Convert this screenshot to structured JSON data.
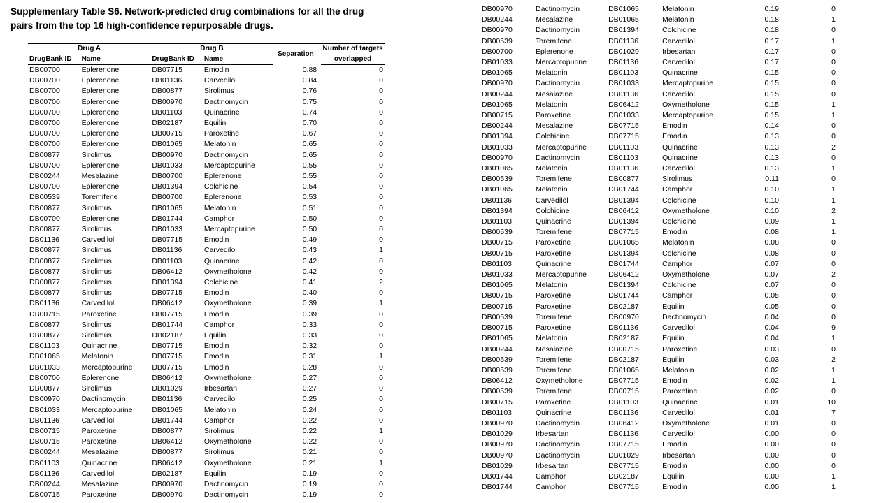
{
  "title_line1": "Supplementary Table S6. Network-predicted drug combinations for all the drug",
  "title_line2": "pairs from the top 16 high-confidence repurposable drugs.",
  "headers": {
    "drug_a": "Drug A",
    "drug_b": "Drug B",
    "separation": "Separation",
    "overlap_line1": "Number of targets",
    "overlap_line2": "overlapped",
    "id_a": "DrugBank ID",
    "name_a": "Name",
    "id_b": "DrugBank ID",
    "name_b": "Name"
  },
  "left_rows": [
    [
      "DB00700",
      "Eplerenone",
      "DB07715",
      "Emodin",
      "0.88",
      "0"
    ],
    [
      "DB00700",
      "Eplerenone",
      "DB01136",
      "Carvedilol",
      "0.84",
      "0"
    ],
    [
      "DB00700",
      "Eplerenone",
      "DB00877",
      "Sirolimus",
      "0.76",
      "0"
    ],
    [
      "DB00700",
      "Eplerenone",
      "DB00970",
      "Dactinomycin",
      "0.75",
      "0"
    ],
    [
      "DB00700",
      "Eplerenone",
      "DB01103",
      "Quinacrine",
      "0.74",
      "0"
    ],
    [
      "DB00700",
      "Eplerenone",
      "DB02187",
      "Equilin",
      "0.70",
      "0"
    ],
    [
      "DB00700",
      "Eplerenone",
      "DB00715",
      "Paroxetine",
      "0.67",
      "0"
    ],
    [
      "DB00700",
      "Eplerenone",
      "DB01065",
      "Melatonin",
      "0.65",
      "0"
    ],
    [
      "DB00877",
      "Sirolimus",
      "DB00970",
      "Dactinomycin",
      "0.65",
      "0"
    ],
    [
      "DB00700",
      "Eplerenone",
      "DB01033",
      "Mercaptopurine",
      "0.55",
      "0"
    ],
    [
      "DB00244",
      "Mesalazine",
      "DB00700",
      "Eplerenone",
      "0.55",
      "0"
    ],
    [
      "DB00700",
      "Eplerenone",
      "DB01394",
      "Colchicine",
      "0.54",
      "0"
    ],
    [
      "DB00539",
      "Toremifene",
      "DB00700",
      "Eplerenone",
      "0.53",
      "0"
    ],
    [
      "DB00877",
      "Sirolimus",
      "DB01065",
      "Melatonin",
      "0.51",
      "0"
    ],
    [
      "DB00700",
      "Eplerenone",
      "DB01744",
      "Camphor",
      "0.50",
      "0"
    ],
    [
      "DB00877",
      "Sirolimus",
      "DB01033",
      "Mercaptopurine",
      "0.50",
      "0"
    ],
    [
      "DB01136",
      "Carvedilol",
      "DB07715",
      "Emodin",
      "0.49",
      "0"
    ],
    [
      "DB00877",
      "Sirolimus",
      "DB01136",
      "Carvedilol",
      "0.43",
      "1"
    ],
    [
      "DB00877",
      "Sirolimus",
      "DB01103",
      "Quinacrine",
      "0.42",
      "0"
    ],
    [
      "DB00877",
      "Sirolimus",
      "DB06412",
      "Oxymetholone",
      "0.42",
      "0"
    ],
    [
      "DB00877",
      "Sirolimus",
      "DB01394",
      "Colchicine",
      "0.41",
      "2"
    ],
    [
      "DB00877",
      "Sirolimus",
      "DB07715",
      "Emodin",
      "0.40",
      "0"
    ],
    [
      "DB01136",
      "Carvedilol",
      "DB06412",
      "Oxymetholone",
      "0.39",
      "1"
    ],
    [
      "DB00715",
      "Paroxetine",
      "DB07715",
      "Emodin",
      "0.39",
      "0"
    ],
    [
      "DB00877",
      "Sirolimus",
      "DB01744",
      "Camphor",
      "0.33",
      "0"
    ],
    [
      "DB00877",
      "Sirolimus",
      "DB02187",
      "Equilin",
      "0.33",
      "0"
    ],
    [
      "DB01103",
      "Quinacrine",
      "DB07715",
      "Emodin",
      "0.32",
      "0"
    ],
    [
      "DB01065",
      "Melatonin",
      "DB07715",
      "Emodin",
      "0.31",
      "1"
    ],
    [
      "DB01033",
      "Mercaptopurine",
      "DB07715",
      "Emodin",
      "0.28",
      "0"
    ],
    [
      "DB00700",
      "Eplerenone",
      "DB06412",
      "Oxymetholone",
      "0.27",
      "0"
    ],
    [
      "DB00877",
      "Sirolimus",
      "DB01029",
      "Irbesartan",
      "0.27",
      "0"
    ],
    [
      "DB00970",
      "Dactinomycin",
      "DB01136",
      "Carvedilol",
      "0.25",
      "0"
    ],
    [
      "DB01033",
      "Mercaptopurine",
      "DB01065",
      "Melatonin",
      "0.24",
      "0"
    ],
    [
      "DB01136",
      "Carvedilol",
      "DB01744",
      "Camphor",
      "0.22",
      "0"
    ],
    [
      "DB00715",
      "Paroxetine",
      "DB00877",
      "Sirolimus",
      "0.22",
      "1"
    ],
    [
      "DB00715",
      "Paroxetine",
      "DB06412",
      "Oxymetholone",
      "0.22",
      "0"
    ],
    [
      "DB00244",
      "Mesalazine",
      "DB00877",
      "Sirolimus",
      "0.21",
      "0"
    ],
    [
      "DB01103",
      "Quinacrine",
      "DB06412",
      "Oxymetholone",
      "0.21",
      "1"
    ],
    [
      "DB01136",
      "Carvedilol",
      "DB02187",
      "Equilin",
      "0.19",
      "0"
    ],
    [
      "DB00244",
      "Mesalazine",
      "DB00970",
      "Dactinomycin",
      "0.19",
      "0"
    ],
    [
      "DB00715",
      "Paroxetine",
      "DB00970",
      "Dactinomycin",
      "0.19",
      "0"
    ]
  ],
  "right_rows": [
    [
      "DB00970",
      "Dactinomycin",
      "DB01065",
      "Melatonin",
      "0.19",
      "0"
    ],
    [
      "DB00244",
      "Mesalazine",
      "DB01065",
      "Melatonin",
      "0.18",
      "1"
    ],
    [
      "DB00970",
      "Dactinomycin",
      "DB01394",
      "Colchicine",
      "0.18",
      "0"
    ],
    [
      "DB00539",
      "Toremifene",
      "DB01136",
      "Carvedilol",
      "0.17",
      "1"
    ],
    [
      "DB00700",
      "Eplerenone",
      "DB01029",
      "Irbesartan",
      "0.17",
      "0"
    ],
    [
      "DB01033",
      "Mercaptopurine",
      "DB01136",
      "Carvedilol",
      "0.17",
      "0"
    ],
    [
      "DB01065",
      "Melatonin",
      "DB01103",
      "Quinacrine",
      "0.15",
      "0"
    ],
    [
      "DB00970",
      "Dactinomycin",
      "DB01033",
      "Mercaptopurine",
      "0.15",
      "0"
    ],
    [
      "DB00244",
      "Mesalazine",
      "DB01136",
      "Carvedilol",
      "0.15",
      "0"
    ],
    [
      "DB01065",
      "Melatonin",
      "DB06412",
      "Oxymetholone",
      "0.15",
      "1"
    ],
    [
      "DB00715",
      "Paroxetine",
      "DB01033",
      "Mercaptopurine",
      "0.15",
      "1"
    ],
    [
      "DB00244",
      "Mesalazine",
      "DB07715",
      "Emodin",
      "0.14",
      "0"
    ],
    [
      "DB01394",
      "Colchicine",
      "DB07715",
      "Emodin",
      "0.13",
      "0"
    ],
    [
      "DB01033",
      "Mercaptopurine",
      "DB01103",
      "Quinacrine",
      "0.13",
      "2"
    ],
    [
      "DB00970",
      "Dactinomycin",
      "DB01103",
      "Quinacrine",
      "0.13",
      "0"
    ],
    [
      "DB01065",
      "Melatonin",
      "DB01136",
      "Carvedilol",
      "0.13",
      "1"
    ],
    [
      "DB00539",
      "Toremifene",
      "DB00877",
      "Sirolimus",
      "0.11",
      "0"
    ],
    [
      "DB01065",
      "Melatonin",
      "DB01744",
      "Camphor",
      "0.10",
      "1"
    ],
    [
      "DB01136",
      "Carvedilol",
      "DB01394",
      "Colchicine",
      "0.10",
      "1"
    ],
    [
      "DB01394",
      "Colchicine",
      "DB06412",
      "Oxymetholone",
      "0.10",
      "2"
    ],
    [
      "DB01103",
      "Quinacrine",
      "DB01394",
      "Colchicine",
      "0.09",
      "1"
    ],
    [
      "DB00539",
      "Toremifene",
      "DB07715",
      "Emodin",
      "0.08",
      "1"
    ],
    [
      "DB00715",
      "Paroxetine",
      "DB01065",
      "Melatonin",
      "0.08",
      "0"
    ],
    [
      "DB00715",
      "Paroxetine",
      "DB01394",
      "Colchicine",
      "0.08",
      "0"
    ],
    [
      "DB01103",
      "Quinacrine",
      "DB01744",
      "Camphor",
      "0.07",
      "0"
    ],
    [
      "DB01033",
      "Mercaptopurine",
      "DB06412",
      "Oxymetholone",
      "0.07",
      "2"
    ],
    [
      "DB01065",
      "Melatonin",
      "DB01394",
      "Colchicine",
      "0.07",
      "0"
    ],
    [
      "DB00715",
      "Paroxetine",
      "DB01744",
      "Camphor",
      "0.05",
      "0"
    ],
    [
      "DB00715",
      "Paroxetine",
      "DB02187",
      "Equilin",
      "0.05",
      "0"
    ],
    [
      "DB00539",
      "Toremifene",
      "DB00970",
      "Dactinomycin",
      "0.04",
      "0"
    ],
    [
      "DB00715",
      "Paroxetine",
      "DB01136",
      "Carvedilol",
      "0.04",
      "9"
    ],
    [
      "DB01065",
      "Melatonin",
      "DB02187",
      "Equilin",
      "0.04",
      "1"
    ],
    [
      "DB00244",
      "Mesalazine",
      "DB00715",
      "Paroxetine",
      "0.03",
      "0"
    ],
    [
      "DB00539",
      "Toremifene",
      "DB02187",
      "Equilin",
      "0.03",
      "2"
    ],
    [
      "DB00539",
      "Toremifene",
      "DB01065",
      "Melatonin",
      "0.02",
      "1"
    ],
    [
      "DB06412",
      "Oxymetholone",
      "DB07715",
      "Emodin",
      "0.02",
      "1"
    ],
    [
      "DB00539",
      "Toremifene",
      "DB00715",
      "Paroxetine",
      "0.02",
      "0"
    ],
    [
      "DB00715",
      "Paroxetine",
      "DB01103",
      "Quinacrine",
      "0.01",
      "10"
    ],
    [
      "DB01103",
      "Quinacrine",
      "DB01136",
      "Carvedilol",
      "0.01",
      "7"
    ],
    [
      "DB00970",
      "Dactinomycin",
      "DB06412",
      "Oxymetholone",
      "0.01",
      "0"
    ],
    [
      "DB01029",
      "Irbesartan",
      "DB01136",
      "Carvedilol",
      "0.00",
      "0"
    ],
    [
      "DB00970",
      "Dactinomycin",
      "DB07715",
      "Emodin",
      "0.00",
      "0"
    ],
    [
      "DB00970",
      "Dactinomycin",
      "DB01029",
      "Irbesartan",
      "0.00",
      "0"
    ],
    [
      "DB01029",
      "Irbesartan",
      "DB07715",
      "Emodin",
      "0.00",
      "0"
    ],
    [
      "DB01744",
      "Camphor",
      "DB02187",
      "Equilin",
      "0.00",
      "1"
    ],
    [
      "DB01744",
      "Camphor",
      "DB07715",
      "Emodin",
      "0.00",
      "1"
    ]
  ]
}
